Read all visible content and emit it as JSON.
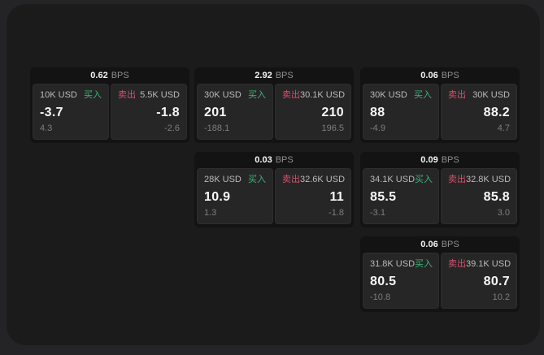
{
  "labels": {
    "bps": "BPS",
    "buy": "买入",
    "sell": "卖出"
  },
  "colors": {
    "buy_green": "#3fb377",
    "sell_red": "#d5506a",
    "background": "#242426",
    "window_background": "#1b1b1c",
    "card_background": "#131314",
    "panel_background": "#262627"
  },
  "cards": [
    {
      "bps": "0.62",
      "buy": {
        "amount": "10K USD",
        "value": "-3.7",
        "sub": "4.3"
      },
      "sell": {
        "amount": "5.5K USD",
        "value": "-1.8",
        "sub": "-2.6"
      }
    },
    {
      "bps": "2.92",
      "buy": {
        "amount": "30K USD",
        "value": "201",
        "sub": "-188.1"
      },
      "sell": {
        "amount": "30.1K USD",
        "value": "210",
        "sub": "196.5"
      }
    },
    {
      "bps": "0.06",
      "buy": {
        "amount": "30K USD",
        "value": "88",
        "sub": "-4.9"
      },
      "sell": {
        "amount": "30K USD",
        "value": "88.2",
        "sub": "4.7"
      }
    },
    {
      "bps": "0.03",
      "buy": {
        "amount": "28K USD",
        "value": "10.9",
        "sub": "1.3"
      },
      "sell": {
        "amount": "32.6K USD",
        "value": "11",
        "sub": "-1.8"
      }
    },
    {
      "bps": "0.09",
      "buy": {
        "amount": "34.1K USD",
        "value": "85.5",
        "sub": "-3.1"
      },
      "sell": {
        "amount": "32.8K USD",
        "value": "85.8",
        "sub": "3.0"
      }
    },
    {
      "bps": "0.06",
      "buy": {
        "amount": "31.8K USD",
        "value": "80.5",
        "sub": "-10.8"
      },
      "sell": {
        "amount": "39.1K USD",
        "value": "80.7",
        "sub": "10.2"
      }
    }
  ]
}
